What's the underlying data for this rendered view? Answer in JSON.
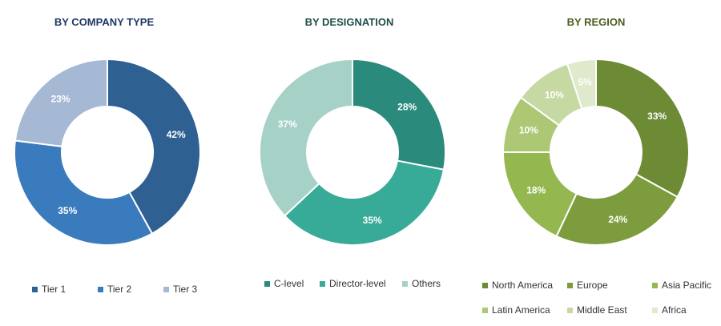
{
  "chart_data": [
    {
      "type": "pie",
      "donut": true,
      "title": "BY COMPANY TYPE",
      "categories": [
        "Tier 1",
        "Tier 2",
        "Tier 3"
      ],
      "values": [
        42,
        35,
        23
      ],
      "labels": [
        "42%",
        "35%",
        "23%"
      ],
      "colors": [
        "#2e6092",
        "#3a7bbd",
        "#a5b8d4"
      ],
      "title_color": "#1f3864",
      "legend_position": "bottom"
    },
    {
      "type": "pie",
      "donut": true,
      "title": "BY DESIGNATION",
      "categories": [
        "C-level",
        "Director-level",
        "Others"
      ],
      "values": [
        28,
        35,
        37
      ],
      "labels": [
        "28%",
        "35%",
        "37%"
      ],
      "colors": [
        "#2a8a7c",
        "#38aa98",
        "#a6d1c7"
      ],
      "title_color": "#1f4e4a",
      "legend_position": "bottom"
    },
    {
      "type": "pie",
      "donut": true,
      "title": "BY REGION",
      "categories": [
        "North America",
        "Europe",
        "Asia Pacific",
        "Latin America",
        "Middle East",
        "Africa"
      ],
      "values": [
        33,
        24,
        18,
        10,
        10,
        5
      ],
      "labels": [
        "33%",
        "24%",
        "18%",
        "10%",
        "10%",
        "5%"
      ],
      "colors": [
        "#6d8a35",
        "#7d9c3d",
        "#94b750",
        "#acc875",
        "#c6d9a3",
        "#dfe9cc"
      ],
      "title_color": "#4a5e1f",
      "legend_position": "bottom"
    }
  ]
}
